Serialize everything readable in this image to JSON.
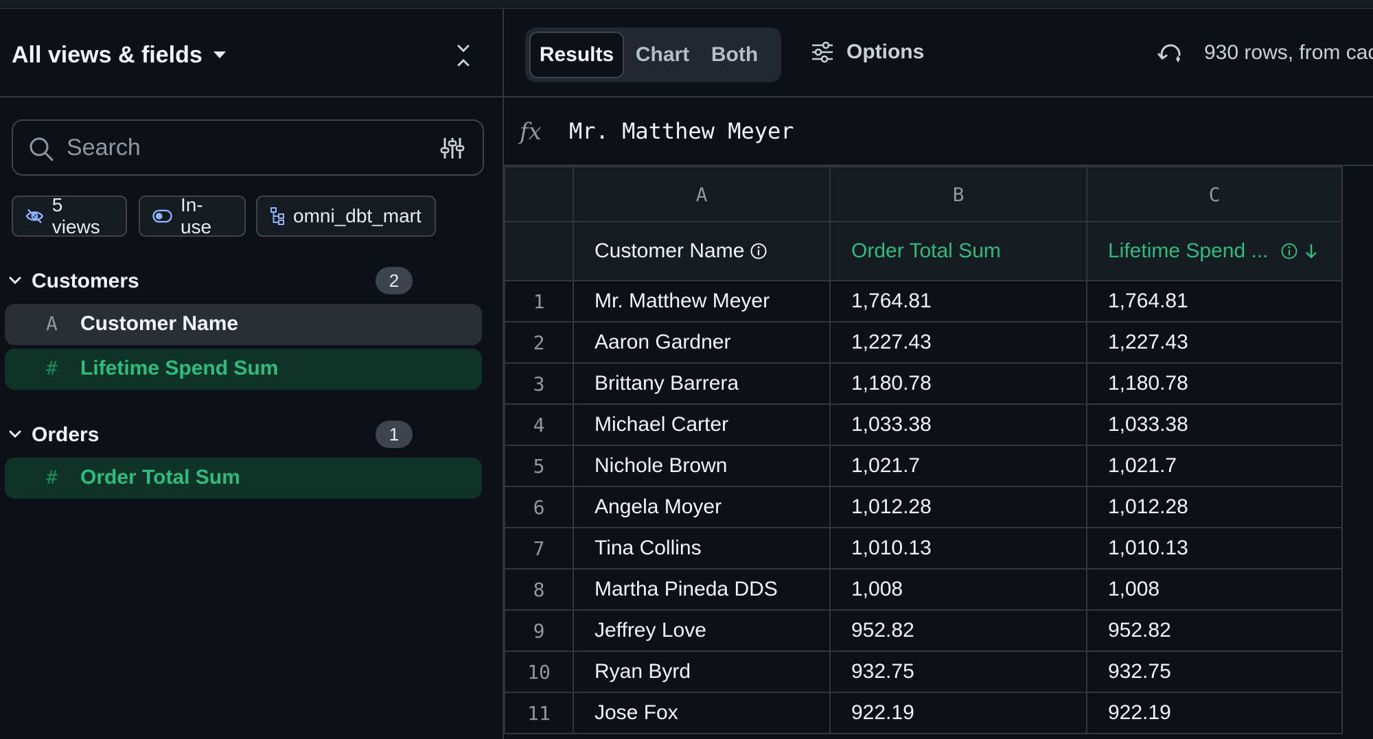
{
  "left_panel": {
    "title": "All views & fields",
    "search": {
      "placeholder": "Search"
    },
    "chips": [
      {
        "label": "5 views",
        "icon": "eye-off-icon"
      },
      {
        "label": "In-use",
        "icon": "toggle-icon"
      },
      {
        "label": "omni_dbt_mart",
        "icon": "tree-icon"
      }
    ],
    "sections": [
      {
        "label": "Customers",
        "count": "2",
        "fields": [
          {
            "type_icon": "A",
            "label": "Customer Name",
            "state": "in-use"
          },
          {
            "type_icon": "#",
            "label": "Lifetime Spend Sum",
            "state": "selected-measure"
          }
        ]
      },
      {
        "label": "Orders",
        "count": "1",
        "fields": [
          {
            "type_icon": "#",
            "label": "Order Total Sum",
            "state": "selected-measure"
          }
        ]
      }
    ]
  },
  "toolbar": {
    "tabs": [
      "Results",
      "Chart",
      "Both"
    ],
    "active_tab": "Results",
    "options_label": "Options",
    "rows_info": "930 rows, from cac"
  },
  "formula_bar": {
    "fx_label": "fx",
    "value": "Mr. Matthew Meyer"
  },
  "grid": {
    "column_letters": [
      "A",
      "B",
      "C"
    ],
    "column_headers": [
      "Customer Name",
      "Order Total Sum",
      "Lifetime Spend ..."
    ],
    "rows": [
      {
        "n": "1",
        "cells": [
          "Mr. Matthew Meyer",
          "1,764.81",
          "1,764.81"
        ]
      },
      {
        "n": "2",
        "cells": [
          "Aaron Gardner",
          "1,227.43",
          "1,227.43"
        ]
      },
      {
        "n": "3",
        "cells": [
          "Brittany Barrera",
          "1,180.78",
          "1,180.78"
        ]
      },
      {
        "n": "4",
        "cells": [
          "Michael Carter",
          "1,033.38",
          "1,033.38"
        ]
      },
      {
        "n": "5",
        "cells": [
          "Nichole Brown",
          "1,021.7",
          "1,021.7"
        ]
      },
      {
        "n": "6",
        "cells": [
          "Angela Moyer",
          "1,012.28",
          "1,012.28"
        ]
      },
      {
        "n": "7",
        "cells": [
          "Tina Collins",
          "1,010.13",
          "1,010.13"
        ]
      },
      {
        "n": "8",
        "cells": [
          "Martha Pineda DDS",
          "1,008",
          "1,008"
        ]
      },
      {
        "n": "9",
        "cells": [
          "Jeffrey Love",
          "952.82",
          "952.82"
        ]
      },
      {
        "n": "10",
        "cells": [
          "Ryan Byrd",
          "932.75",
          "932.75"
        ]
      },
      {
        "n": "11",
        "cells": [
          "Jose Fox",
          "922.19",
          "922.19"
        ]
      }
    ]
  },
  "colors": {
    "background": "#0d1117",
    "measure_green": "#2dbd7e",
    "selected_field_bg": "#0f3326",
    "border": "#30363d"
  }
}
